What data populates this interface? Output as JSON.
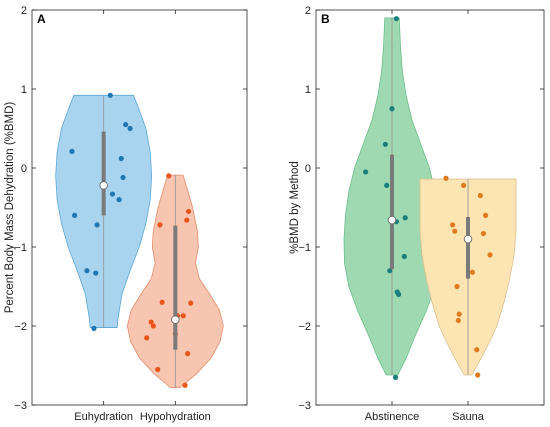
{
  "chart_data": [
    {
      "type": "violin",
      "panel_label": "A",
      "ylabel": "Percent Body Mass Dehydration (%BMD)",
      "ylim": [
        -3,
        2
      ],
      "yticks": [
        -3,
        -2,
        -1,
        0,
        1,
        2
      ],
      "categories": [
        "Euhydration",
        "Hypohydration"
      ],
      "series": [
        {
          "category": "Euhydration",
          "fill": "#a8d4ef",
          "dot": "#1f77b4",
          "edge": "#5aa7d6",
          "median": -0.22,
          "q1": -0.6,
          "q3": 0.46,
          "min": -2.02,
          "max": 0.92,
          "violin_profile": [
            [
              -2.02,
              0.28
            ],
            [
              -1.9,
              0.3
            ],
            [
              -1.6,
              0.38
            ],
            [
              -1.3,
              0.55
            ],
            [
              -1.0,
              0.74
            ],
            [
              -0.7,
              0.88
            ],
            [
              -0.4,
              0.97
            ],
            [
              -0.1,
              1.0
            ],
            [
              0.2,
              0.97
            ],
            [
              0.5,
              0.88
            ],
            [
              0.8,
              0.7
            ],
            [
              0.92,
              0.62
            ]
          ],
          "points": [
            {
              "x": -0.72,
              "y": 0.21
            },
            {
              "x": -0.66,
              "y": -0.6
            },
            {
              "x": -0.38,
              "y": -1.3
            },
            {
              "x": -0.18,
              "y": -1.33
            },
            {
              "x": -0.15,
              "y": -0.72
            },
            {
              "x": -0.22,
              "y": -2.03
            },
            {
              "x": 0.15,
              "y": 0.92
            },
            {
              "x": 0.2,
              "y": -0.33
            },
            {
              "x": 0.35,
              "y": -0.4
            },
            {
              "x": 0.4,
              "y": 0.12
            },
            {
              "x": 0.5,
              "y": 0.55
            },
            {
              "x": 0.6,
              "y": 0.5
            },
            {
              "x": 0.44,
              "y": -0.12
            }
          ]
        },
        {
          "category": "Hypohydration",
          "fill": "#f8c5b1",
          "dot": "#e8561b",
          "edge": "#e58e6e",
          "median": -1.92,
          "q1": -2.3,
          "q3": -0.73,
          "min": -2.78,
          "max": -0.09,
          "violin_profile": [
            [
              -2.78,
              0.1
            ],
            [
              -2.6,
              0.45
            ],
            [
              -2.4,
              0.75
            ],
            [
              -2.2,
              0.93
            ],
            [
              -2.0,
              1.0
            ],
            [
              -1.8,
              0.92
            ],
            [
              -1.6,
              0.72
            ],
            [
              -1.4,
              0.5
            ],
            [
              -1.2,
              0.42
            ],
            [
              -1.0,
              0.48
            ],
            [
              -0.8,
              0.46
            ],
            [
              -0.5,
              0.36
            ],
            [
              -0.25,
              0.24
            ],
            [
              -0.09,
              0.16
            ]
          ],
          "points": [
            {
              "x": -0.65,
              "y": -2.15
            },
            {
              "x": -0.55,
              "y": -1.95
            },
            {
              "x": -0.4,
              "y": -2.55
            },
            {
              "x": -0.3,
              "y": -1.7
            },
            {
              "x": -0.35,
              "y": -0.72
            },
            {
              "x": -0.15,
              "y": -0.1
            },
            {
              "x": 0.0,
              "y": -2.1
            },
            {
              "x": 0.05,
              "y": -1.87
            },
            {
              "x": 0.18,
              "y": -1.87
            },
            {
              "x": 0.22,
              "y": -2.75
            },
            {
              "x": 0.28,
              "y": -2.35
            },
            {
              "x": 0.3,
              "y": -0.55
            },
            {
              "x": 0.26,
              "y": -0.66
            },
            {
              "x": 0.35,
              "y": -1.71
            },
            {
              "x": -0.5,
              "y": -2.0
            }
          ]
        }
      ]
    },
    {
      "type": "violin",
      "panel_label": "B",
      "ylabel": "%BMD by Method",
      "ylim": [
        -3,
        2
      ],
      "yticks": [
        -3,
        -2,
        -1,
        0,
        1,
        2
      ],
      "categories": [
        "Abstinence",
        "Sauna"
      ],
      "series": [
        {
          "category": "Abstinence",
          "fill": "#9ed9b1",
          "dot": "#1a7f7a",
          "edge": "#6bbf8a",
          "median": -0.66,
          "q1": -1.28,
          "q3": 0.17,
          "min": -2.62,
          "max": 1.9,
          "violin_profile": [
            [
              -2.62,
              0.12
            ],
            [
              -2.4,
              0.3
            ],
            [
              -2.1,
              0.5
            ],
            [
              -1.8,
              0.72
            ],
            [
              -1.5,
              0.9
            ],
            [
              -1.2,
              0.99
            ],
            [
              -0.9,
              1.0
            ],
            [
              -0.6,
              0.97
            ],
            [
              -0.3,
              0.9
            ],
            [
              0.0,
              0.78
            ],
            [
              0.3,
              0.6
            ],
            [
              0.6,
              0.42
            ],
            [
              0.9,
              0.3
            ],
            [
              1.2,
              0.22
            ],
            [
              1.5,
              0.18
            ],
            [
              1.9,
              0.15
            ]
          ],
          "points": [
            {
              "x": -0.6,
              "y": -0.05
            },
            {
              "x": -0.15,
              "y": 0.3
            },
            {
              "x": -0.12,
              "y": -0.22
            },
            {
              "x": -0.05,
              "y": -1.3
            },
            {
              "x": 0.0,
              "y": 0.75
            },
            {
              "x": 0.1,
              "y": -0.68
            },
            {
              "x": 0.12,
              "y": -1.57
            },
            {
              "x": 0.15,
              "y": -1.6
            },
            {
              "x": 0.08,
              "y": -2.65
            },
            {
              "x": 0.3,
              "y": -0.63
            },
            {
              "x": 0.28,
              "y": -1.12
            },
            {
              "x": 0.72,
              "y": -1.05
            },
            {
              "x": 0.1,
              "y": 1.89
            }
          ]
        },
        {
          "category": "Sauna",
          "fill": "#fde5b3",
          "dot": "#e07b1d",
          "edge": "#dcc08f",
          "median": -0.9,
          "q1": -1.4,
          "q3": -0.62,
          "min": -2.62,
          "max": -0.14,
          "violin_profile": [
            [
              -2.62,
              0.08
            ],
            [
              -2.4,
              0.28
            ],
            [
              -2.2,
              0.45
            ],
            [
              -2.0,
              0.6
            ],
            [
              -1.7,
              0.75
            ],
            [
              -1.4,
              0.87
            ],
            [
              -1.1,
              0.96
            ],
            [
              -0.8,
              1.0
            ],
            [
              -0.5,
              1.0
            ],
            [
              -0.3,
              1.0
            ],
            [
              -0.14,
              1.0
            ]
          ],
          "points": [
            {
              "x": -0.5,
              "y": -0.13
            },
            {
              "x": -0.35,
              "y": -0.72
            },
            {
              "x": -0.3,
              "y": -0.8
            },
            {
              "x": -0.25,
              "y": -1.5
            },
            {
              "x": -0.2,
              "y": -1.85
            },
            {
              "x": -0.22,
              "y": -1.93
            },
            {
              "x": -0.1,
              "y": -0.22
            },
            {
              "x": 0.1,
              "y": -1.32
            },
            {
              "x": 0.2,
              "y": -2.3
            },
            {
              "x": 0.22,
              "y": -2.62
            },
            {
              "x": 0.28,
              "y": -0.35
            },
            {
              "x": 0.35,
              "y": -0.83
            },
            {
              "x": 0.4,
              "y": -0.6
            },
            {
              "x": 0.5,
              "y": -1.1
            }
          ]
        }
      ]
    }
  ]
}
